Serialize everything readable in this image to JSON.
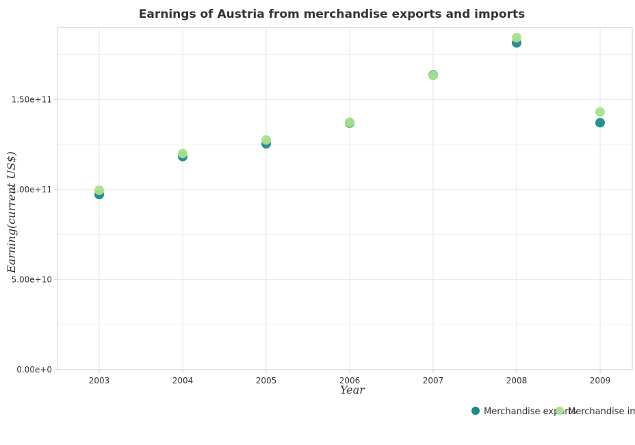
{
  "chart_data": {
    "type": "scatter",
    "title": "Earnings of Austria from merchandise exports and imports",
    "xlabel": "Year",
    "ylabel": "Earning(current US$)",
    "categories": [
      "2003",
      "2004",
      "2005",
      "2006",
      "2007",
      "2008",
      "2009"
    ],
    "ylim": [
      0,
      190000000000
    ],
    "yticks": [
      0,
      50000000000,
      100000000000,
      150000000000
    ],
    "ytick_labels": [
      "0.00e+0",
      "5.00e+10",
      "1.00e+11",
      "1.50e+11"
    ],
    "grid": true,
    "legend_position": "bottom-right",
    "series": [
      {
        "name": "Merchandise exports",
        "color": "#1a8a8a",
        "values": [
          97200000000,
          118300000000,
          125400000000,
          136900000000,
          163600000000,
          181400000000,
          137100000000
        ]
      },
      {
        "name": "Merchandise imports",
        "color": "#a8e28a",
        "values": [
          99600000000,
          120000000000,
          127500000000,
          137300000000,
          163300000000,
          184300000000,
          143000000000
        ]
      }
    ]
  }
}
